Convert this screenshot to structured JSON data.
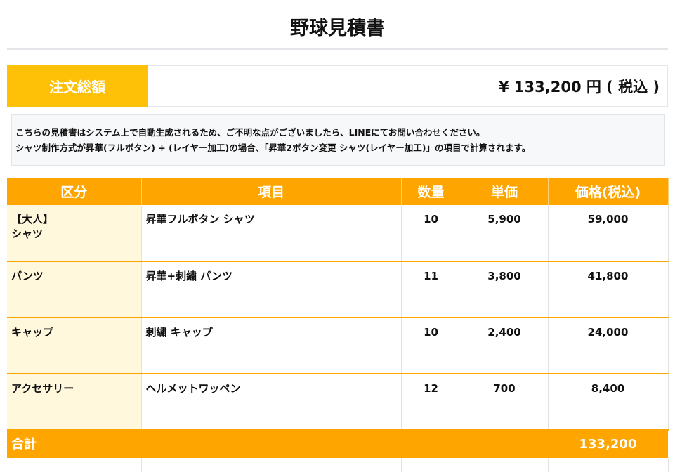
{
  "title": "野球見積書",
  "order_total": {
    "label": "注文総額",
    "value": "¥ 133,200 円 ( 税込 )"
  },
  "notes": [
    "こちらの見積書はシステム上で自動生成されるため、ご不明な点がございましたら、LINEにてお問い合わせください。",
    "シャツ制作方式が昇華(フルボタン) + (レイヤー加工)の場合、「昇華2ボタン変更 シャツ(レイヤー加工)」の項目で計算されます。"
  ],
  "table": {
    "headers": [
      "区分",
      "項目",
      "数量",
      "単価",
      "価格(税込)"
    ],
    "rows": [
      {
        "category": "【大人】\nシャツ",
        "item": "昇華フルボタン シャツ",
        "qty": "10",
        "unit": "5,900",
        "price": "59,000"
      },
      {
        "category": "パンツ",
        "item": "昇華+刺繍 パンツ",
        "qty": "11",
        "unit": "3,800",
        "price": "41,800"
      },
      {
        "category": "キャップ",
        "item": "刺繍 キャップ",
        "qty": "10",
        "unit": "2,400",
        "price": "24,000"
      },
      {
        "category": "アクセサリー",
        "item": "ヘルメットワッペン",
        "qty": "12",
        "unit": "700",
        "price": "8,400"
      }
    ],
    "total_label": "合計",
    "total_value": "133,200"
  },
  "colors": {
    "header": "#ffa500",
    "total_label_bg": "#ffc107",
    "category_bg": "#fff8dc"
  }
}
